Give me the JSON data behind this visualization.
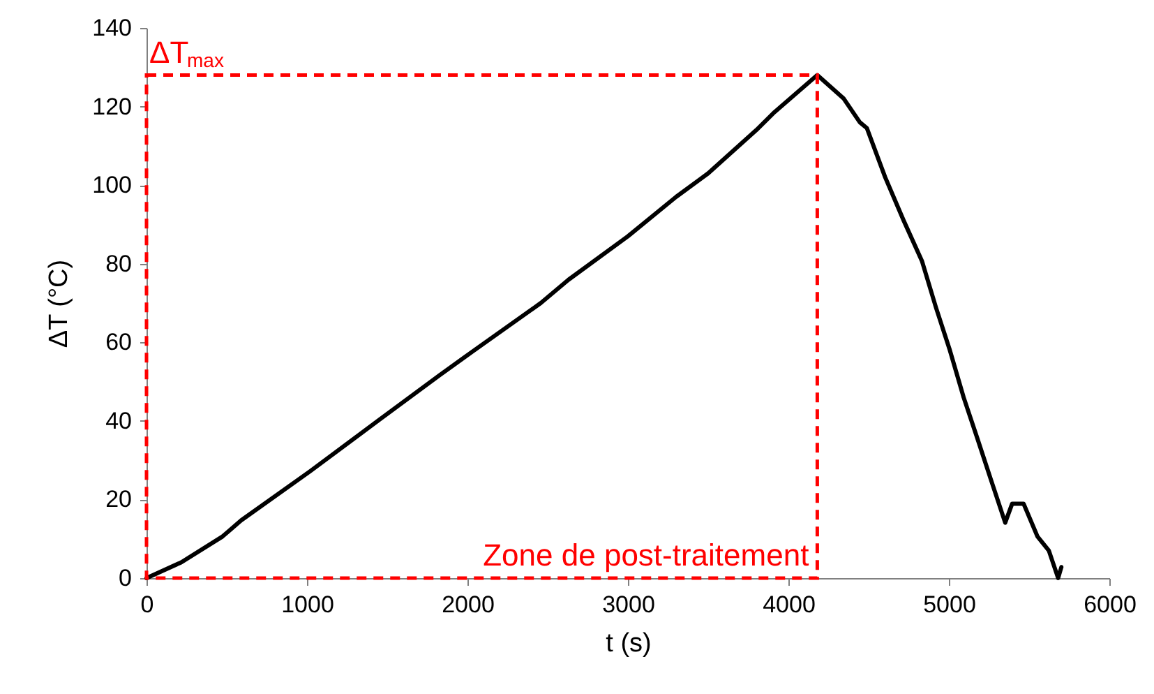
{
  "chart_data": {
    "type": "line",
    "xlabel": "t (s)",
    "ylabel": "ΔT (°C)",
    "x": [
      0,
      216,
      474,
      590,
      1020,
      1451,
      1825,
      2026,
      2457,
      2629,
      3000,
      3300,
      3500,
      3800,
      3914,
      4180,
      4345,
      4445,
      4489,
      4603,
      4718,
      4833,
      4920,
      5006,
      5092,
      5178,
      5264,
      5351,
      5394,
      5466,
      5552,
      5623,
      5681,
      5701
    ],
    "series": [
      {
        "color": "#000000",
        "values": [
          0,
          4,
          10.6,
          14.7,
          27.2,
          40.3,
          51.6,
          57.5,
          70,
          75.9,
          87,
          97,
          103,
          114,
          118.6,
          128,
          122,
          116,
          114.5,
          102,
          91,
          80.6,
          68.8,
          58,
          46,
          35.5,
          24.8,
          14.1,
          18.9,
          18.9,
          10.6,
          7,
          0,
          2.8
        ]
      }
    ],
    "xlim": [
      0,
      6000
    ],
    "xticks": [
      0,
      1000,
      2000,
      3000,
      4000,
      5000,
      6000
    ],
    "ylim": [
      0,
      140
    ],
    "yticks": [
      0,
      20,
      40,
      60,
      80,
      100,
      120,
      140
    ],
    "annotations": [
      "ΔT$_{max}$",
      "Zone de post-traitement"
    ]
  }
}
